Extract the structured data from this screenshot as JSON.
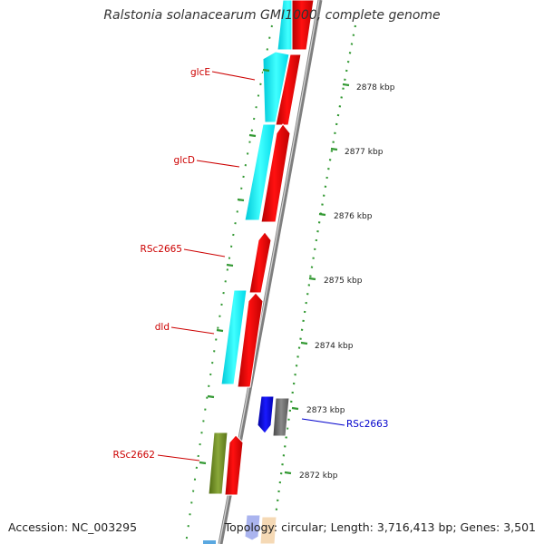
{
  "title": "Ralstonia solanacearum GMI1000, complete genome",
  "footer": {
    "accession": "Accession: NC_003295",
    "summary": "Topology: circular; Length: 3,716,413 bp; Genes: 3,501"
  },
  "colors": {
    "forward": "#ff0000",
    "reverse": "#00ffff",
    "ruler": "#339933",
    "backbone": "#7f7f7f",
    "label_forward": "#cc0000",
    "label_reverse": "#0000cc"
  },
  "ruler_ticks": [
    {
      "label": "2878 kbp",
      "value": 2878
    },
    {
      "label": "2877 kbp",
      "value": 2877
    },
    {
      "label": "2876 kbp",
      "value": 2876
    },
    {
      "label": "2875 kbp",
      "value": 2875
    },
    {
      "label": "2874 kbp",
      "value": 2874
    },
    {
      "label": "2873 kbp",
      "value": 2873
    },
    {
      "label": "2872 kbp",
      "value": 2872
    }
  ],
  "gene_labels": [
    {
      "text": "glcE",
      "color": "#cc0000"
    },
    {
      "text": "glcD",
      "color": "#cc0000"
    },
    {
      "text": "RSc2665",
      "color": "#cc0000"
    },
    {
      "text": "dld",
      "color": "#cc0000"
    },
    {
      "text": "RSc2662",
      "color": "#cc0000"
    },
    {
      "text": "RSc2663",
      "color": "#0000cc"
    }
  ]
}
